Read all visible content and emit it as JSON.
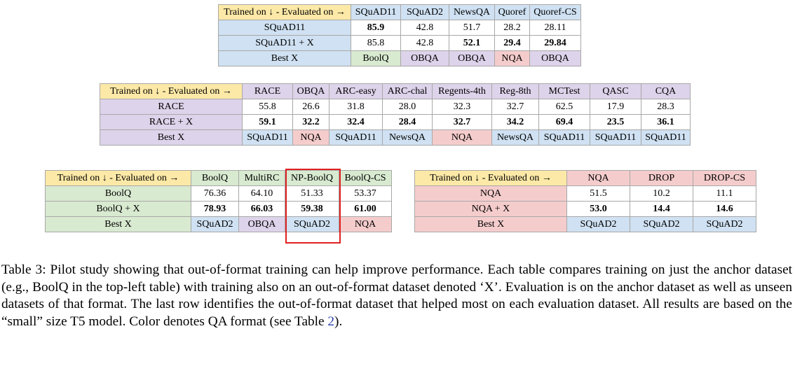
{
  "corner_label": "Trained on ↓ - Evaluated on →",
  "table_ext": {
    "columns": [
      "SQuAD11",
      "SQuAD2",
      "NewsQA",
      "Quoref",
      "Quoref-CS"
    ],
    "rows": [
      {
        "label": "SQuAD11",
        "values": [
          "85.9",
          "42.8",
          "51.7",
          "28.2",
          "28.11"
        ]
      },
      {
        "label": "SQuAD11 + X",
        "values": [
          "85.8",
          "42.8",
          "52.1",
          "29.4",
          "29.84"
        ]
      }
    ],
    "best_label": "Best X",
    "best": [
      "BoolQ",
      "OBQA",
      "OBQA",
      "NQA",
      "OBQA"
    ]
  },
  "table_mc": {
    "columns": [
      "RACE",
      "OBQA",
      "ARC-easy",
      "ARC-chal",
      "Regents-4th",
      "Reg-8th",
      "MCTest",
      "QASC",
      "CQA"
    ],
    "rows": [
      {
        "label": "RACE",
        "values": [
          "55.8",
          "26.6",
          "31.8",
          "28.0",
          "32.3",
          "32.7",
          "62.5",
          "17.9",
          "28.3"
        ]
      },
      {
        "label": "RACE + X",
        "values": [
          "59.1",
          "32.2",
          "32.4",
          "28.4",
          "32.7",
          "34.2",
          "69.4",
          "23.5",
          "36.1"
        ]
      }
    ],
    "best_label": "Best X",
    "best": [
      "SQuAD11",
      "NQA",
      "SQuAD11",
      "NewsQA",
      "NQA",
      "NewsQA",
      "SQuAD11",
      "SQuAD11",
      "SQuAD11"
    ]
  },
  "table_yn": {
    "columns": [
      "BoolQ",
      "MultiRC",
      "NP-BoolQ",
      "BoolQ-CS"
    ],
    "rows": [
      {
        "label": "BoolQ",
        "values": [
          "76.36",
          "64.10",
          "51.33",
          "53.37"
        ]
      },
      {
        "label": "BoolQ + X",
        "values": [
          "78.93",
          "66.03",
          "59.38",
          "61.00"
        ]
      }
    ],
    "best_label": "Best X",
    "best": [
      "SQuAD2",
      "OBQA",
      "SQuAD2",
      "NQA"
    ]
  },
  "table_abs": {
    "columns": [
      "NQA",
      "DROP",
      "DROP-CS"
    ],
    "rows": [
      {
        "label": "NQA",
        "values": [
          "51.5",
          "10.2",
          "11.1"
        ]
      },
      {
        "label": "NQA + X",
        "values": [
          "53.0",
          "14.4",
          "14.6"
        ]
      }
    ],
    "best_label": "Best X",
    "best": [
      "SQuAD2",
      "SQuAD2",
      "SQuAD2"
    ]
  },
  "caption": {
    "text": "Table 3: Pilot study showing that out-of-format training can help improve performance. Each table compares training on just the anchor dataset (e.g., BoolQ in the top-left table) with training also on an out-of-format dataset denoted ‘X’. Evaluation is on the anchor dataset as well as unseen datasets of that format. The last row identifies the out-of-format dataset that helped most on each evaluation dataset. All results are based on the “small” size T5 model. Color denotes QA format (see Table ",
    "ref": "2",
    "end": ")."
  },
  "colors": {
    "header": "#fde9a7",
    "extractive": "#cfe1f2",
    "multiple_choice": "#ddd3ea",
    "yes_no": "#d8ead0",
    "abstractive": "#f5cccc",
    "highlight": "#e02222"
  }
}
